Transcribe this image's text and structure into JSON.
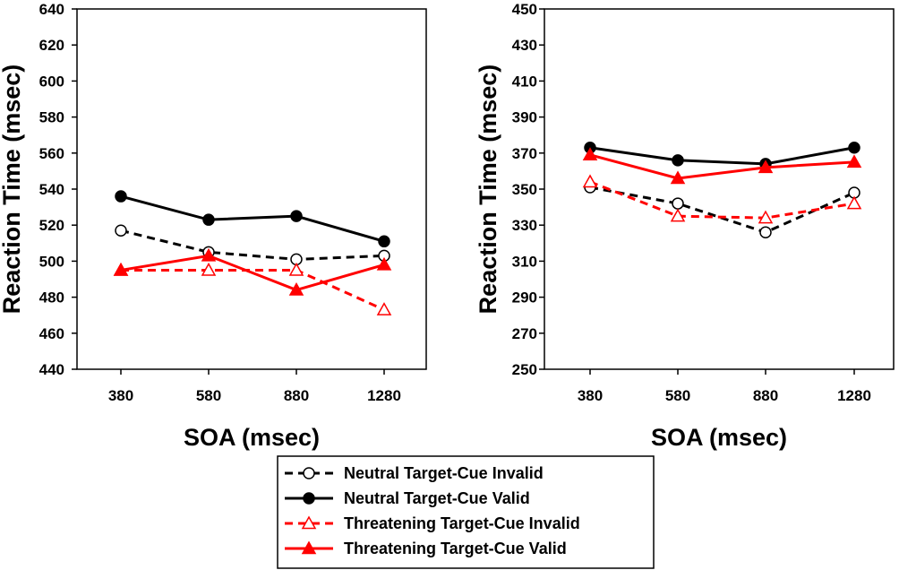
{
  "legend": [
    {
      "name": "Neutral Target-Cue Invalid",
      "color": "#000000",
      "dashed": true,
      "marker": "circle",
      "filled": false
    },
    {
      "name": "Neutral Target-Cue Valid",
      "color": "#000000",
      "dashed": false,
      "marker": "circle",
      "filled": true
    },
    {
      "name": "Threatening Target-Cue Invalid",
      "color": "#ff0000",
      "dashed": true,
      "marker": "triangle",
      "filled": false
    },
    {
      "name": "Threatening Target-Cue Valid",
      "color": "#ff0000",
      "dashed": false,
      "marker": "triangle",
      "filled": true
    }
  ],
  "chart_data": [
    {
      "type": "line",
      "xlabel": "SOA (msec)",
      "ylabel": "Reaction Time (msec)",
      "categories": [
        "380",
        "580",
        "880",
        "1280"
      ],
      "ylim": [
        440,
        640
      ],
      "yticks": [
        440,
        460,
        480,
        500,
        520,
        540,
        560,
        580,
        600,
        620,
        640
      ],
      "series": [
        {
          "name": "Neutral Target-Cue Invalid",
          "values": [
            517,
            505,
            501,
            503
          ]
        },
        {
          "name": "Neutral Target-Cue Valid",
          "values": [
            536,
            523,
            525,
            511
          ]
        },
        {
          "name": "Threatening Target-Cue Invalid",
          "values": [
            495,
            495,
            495,
            473
          ]
        },
        {
          "name": "Threatening Target-Cue Valid",
          "values": [
            495,
            503,
            484,
            498
          ]
        }
      ]
    },
    {
      "type": "line",
      "xlabel": "SOA (msec)",
      "ylabel": "Reaction Time (msec)",
      "categories": [
        "380",
        "580",
        "880",
        "1280"
      ],
      "ylim": [
        250,
        450
      ],
      "yticks": [
        250,
        270,
        290,
        310,
        330,
        350,
        370,
        390,
        410,
        430,
        450
      ],
      "series": [
        {
          "name": "Neutral Target-Cue Invalid",
          "values": [
            351,
            342,
            326,
            348
          ]
        },
        {
          "name": "Neutral Target-Cue Valid",
          "values": [
            373,
            366,
            364,
            373
          ]
        },
        {
          "name": "Threatening Target-Cue Invalid",
          "values": [
            354,
            335,
            334,
            342
          ]
        },
        {
          "name": "Threatening Target-Cue Valid",
          "values": [
            369,
            356,
            362,
            365
          ]
        }
      ]
    }
  ]
}
